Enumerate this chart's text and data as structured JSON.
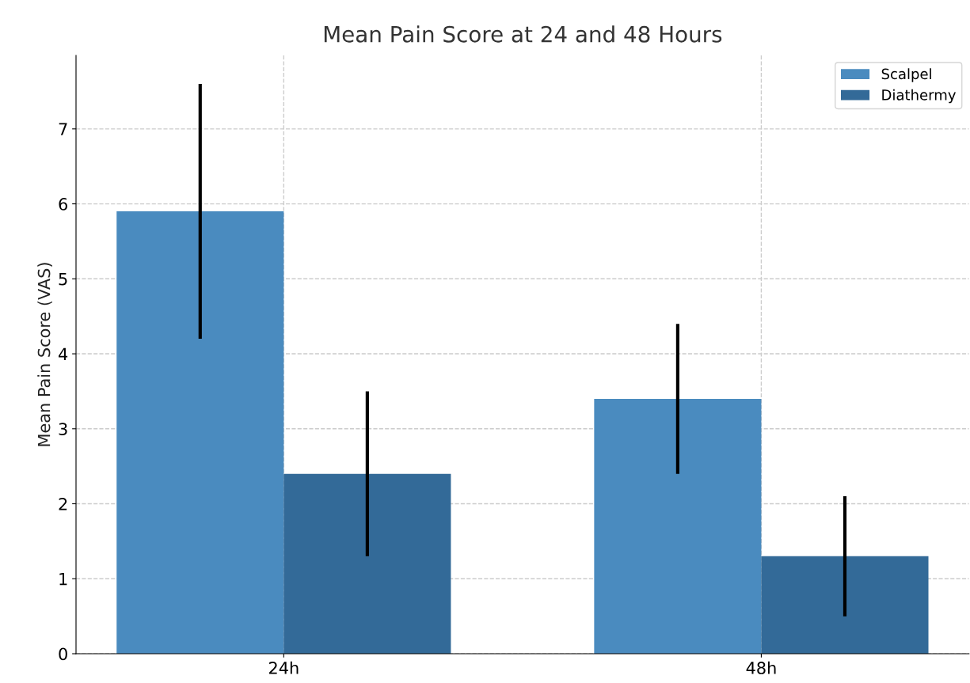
{
  "chart_data": {
    "type": "bar",
    "title": "Mean Pain Score at 24 and 48 Hours",
    "ylabel": "Mean Pain Score (VAS)",
    "categories": [
      "24h",
      "48h"
    ],
    "series": [
      {
        "name": "Scalpel",
        "color": "#4a8bbf",
        "values": [
          5.9,
          3.4
        ],
        "errors": [
          1.7,
          1.0
        ]
      },
      {
        "name": "Diathermy",
        "color": "#336a98",
        "values": [
          2.4,
          1.3
        ],
        "errors": [
          1.1,
          0.8
        ]
      }
    ],
    "ylim": [
      0,
      7.98
    ],
    "yticks": [
      0,
      1,
      2,
      3,
      4,
      5,
      6,
      7
    ],
    "grid": true,
    "legend": "top right"
  }
}
